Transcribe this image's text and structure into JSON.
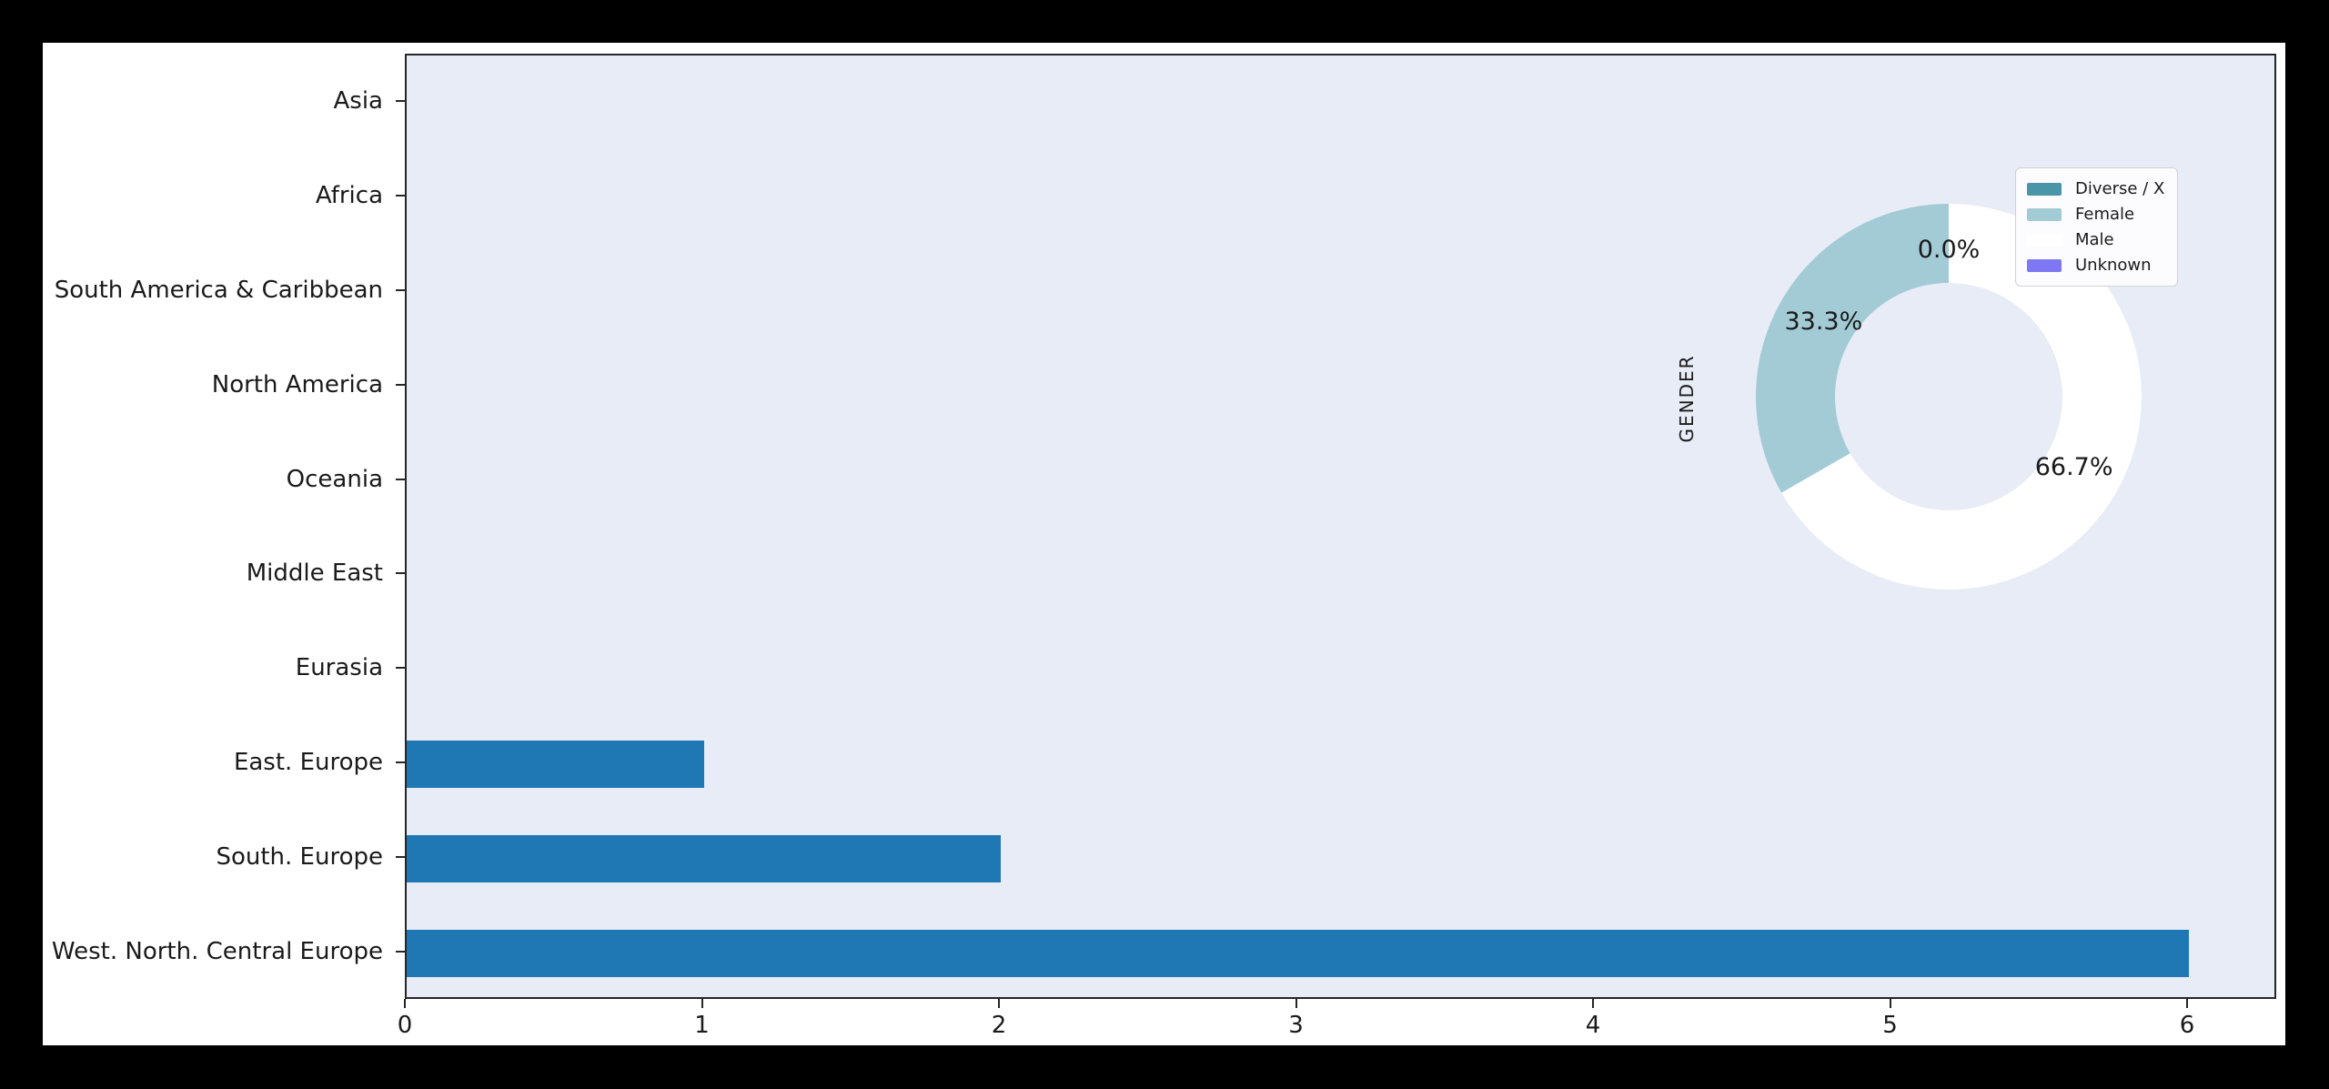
{
  "page": {
    "background": "#000000"
  },
  "figure": {
    "background": "#ffffff"
  },
  "chart_data": {
    "type": "bar",
    "orientation": "horizontal",
    "title": "",
    "xlabel": "",
    "ylabel": "",
    "categories": [
      "Asia",
      "Africa",
      "South America & Caribbean",
      "North America",
      "Oceania",
      "Middle East",
      "Eurasia",
      "East. Europe",
      "South. Europe",
      "West. North. Central Europe"
    ],
    "values": [
      0,
      0,
      0,
      0,
      0,
      0,
      0,
      1,
      2,
      6
    ],
    "xlim": [
      0,
      6.3
    ],
    "xticks": [
      0,
      1,
      2,
      3,
      4,
      5,
      6
    ],
    "xtick_labels": [
      "0",
      "1",
      "2",
      "3",
      "4",
      "5",
      "6"
    ],
    "grid": false,
    "bar_color": "#1f77b4",
    "plot_background": "#e8ecf7",
    "spine_color": "#262626",
    "text_color": "#1a1a1a",
    "inset_pie": {
      "type": "pie",
      "style": "donut",
      "axis_label": "GENDER",
      "legend": [
        "Diverse / X",
        "Female",
        "Male",
        "Unknown"
      ],
      "values_pct": [
        0.0,
        33.3,
        66.7,
        0.0
      ],
      "colors": [
        "#4a95a8",
        "#a2cbd6",
        "#ffffff",
        "#7e79f2"
      ],
      "pct_labels": [
        "0.0%",
        "33.3%",
        "66.7%",
        "0.0%"
      ],
      "start_angle_deg": 90,
      "counterclockwise": true,
      "legend_position": "upper right"
    }
  }
}
